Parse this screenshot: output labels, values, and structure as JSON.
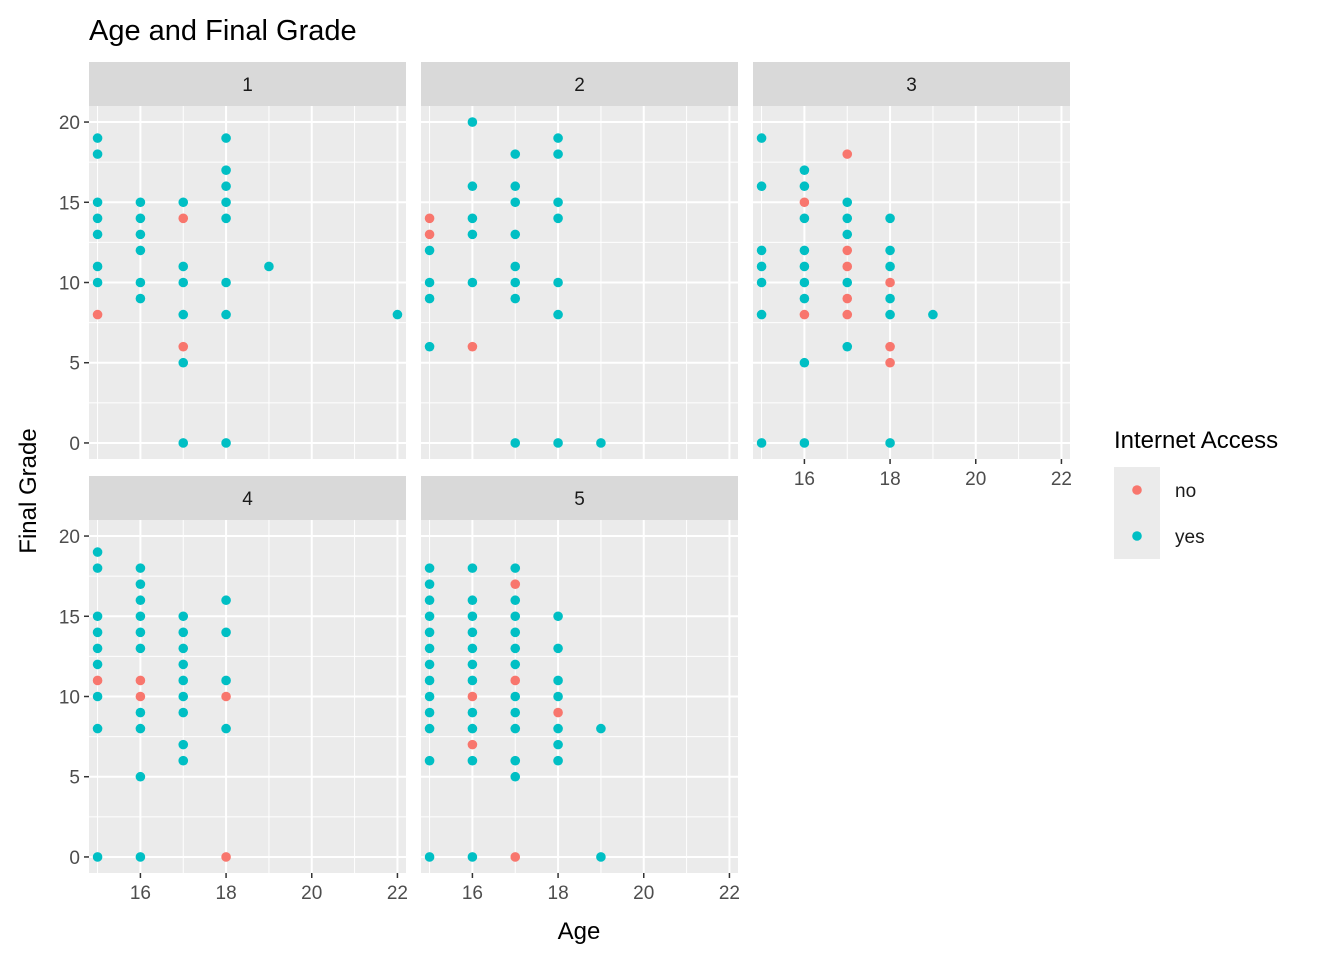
{
  "chart_data": {
    "type": "scatter",
    "title": "Age and Final Grade",
    "xlabel": "Age",
    "ylabel": "Final Grade",
    "xlim": [
      14.8,
      22.2
    ],
    "ylim": [
      -1,
      21
    ],
    "x_ticks": [
      16,
      18,
      20,
      22
    ],
    "y_ticks": [
      0,
      5,
      10,
      15,
      20
    ],
    "grid": true,
    "legend": {
      "title": "Internet Access",
      "position": "right",
      "entries": [
        {
          "label": "no",
          "color": "#F8766D"
        },
        {
          "label": "yes",
          "color": "#00BFC4"
        }
      ]
    },
    "facets": [
      {
        "label": "1",
        "points": [
          [
            15,
            19,
            "yes"
          ],
          [
            15,
            18,
            "yes"
          ],
          [
            15,
            15,
            "yes"
          ],
          [
            15,
            14,
            "yes"
          ],
          [
            15,
            13,
            "yes"
          ],
          [
            15,
            11,
            "yes"
          ],
          [
            15,
            10,
            "yes"
          ],
          [
            15,
            8,
            "no"
          ],
          [
            16,
            15,
            "yes"
          ],
          [
            16,
            14,
            "yes"
          ],
          [
            16,
            13,
            "yes"
          ],
          [
            16,
            12,
            "yes"
          ],
          [
            16,
            10,
            "yes"
          ],
          [
            16,
            9,
            "yes"
          ],
          [
            17,
            15,
            "yes"
          ],
          [
            17,
            14,
            "no"
          ],
          [
            17,
            11,
            "yes"
          ],
          [
            17,
            10,
            "yes"
          ],
          [
            17,
            8,
            "yes"
          ],
          [
            17,
            6,
            "no"
          ],
          [
            17,
            5,
            "yes"
          ],
          [
            17,
            0,
            "yes"
          ],
          [
            18,
            19,
            "yes"
          ],
          [
            18,
            17,
            "yes"
          ],
          [
            18,
            16,
            "yes"
          ],
          [
            18,
            15,
            "yes"
          ],
          [
            18,
            14,
            "yes"
          ],
          [
            18,
            10,
            "yes"
          ],
          [
            18,
            8,
            "yes"
          ],
          [
            18,
            0,
            "yes"
          ],
          [
            19,
            11,
            "yes"
          ],
          [
            22,
            8,
            "yes"
          ]
        ]
      },
      {
        "label": "2",
        "points": [
          [
            15,
            14,
            "no"
          ],
          [
            15,
            13,
            "no"
          ],
          [
            15,
            12,
            "yes"
          ],
          [
            15,
            10,
            "yes"
          ],
          [
            15,
            9,
            "yes"
          ],
          [
            15,
            6,
            "yes"
          ],
          [
            16,
            20,
            "yes"
          ],
          [
            16,
            16,
            "yes"
          ],
          [
            16,
            14,
            "yes"
          ],
          [
            16,
            13,
            "yes"
          ],
          [
            16,
            10,
            "yes"
          ],
          [
            16,
            6,
            "no"
          ],
          [
            17,
            18,
            "yes"
          ],
          [
            17,
            16,
            "yes"
          ],
          [
            17,
            15,
            "yes"
          ],
          [
            17,
            13,
            "yes"
          ],
          [
            17,
            11,
            "yes"
          ],
          [
            17,
            10,
            "yes"
          ],
          [
            17,
            9,
            "yes"
          ],
          [
            17,
            0,
            "yes"
          ],
          [
            18,
            19,
            "yes"
          ],
          [
            18,
            18,
            "yes"
          ],
          [
            18,
            15,
            "yes"
          ],
          [
            18,
            14,
            "yes"
          ],
          [
            18,
            10,
            "yes"
          ],
          [
            18,
            8,
            "yes"
          ],
          [
            18,
            0,
            "yes"
          ],
          [
            19,
            0,
            "yes"
          ]
        ]
      },
      {
        "label": "3",
        "points": [
          [
            15,
            19,
            "yes"
          ],
          [
            15,
            16,
            "yes"
          ],
          [
            15,
            12,
            "yes"
          ],
          [
            15,
            11,
            "yes"
          ],
          [
            15,
            10,
            "yes"
          ],
          [
            15,
            8,
            "yes"
          ],
          [
            15,
            0,
            "yes"
          ],
          [
            16,
            17,
            "yes"
          ],
          [
            16,
            16,
            "yes"
          ],
          [
            16,
            15,
            "no"
          ],
          [
            16,
            14,
            "yes"
          ],
          [
            16,
            12,
            "yes"
          ],
          [
            16,
            11,
            "yes"
          ],
          [
            16,
            10,
            "yes"
          ],
          [
            16,
            9,
            "yes"
          ],
          [
            16,
            8,
            "no"
          ],
          [
            16,
            5,
            "yes"
          ],
          [
            16,
            0,
            "yes"
          ],
          [
            17,
            18,
            "no"
          ],
          [
            17,
            15,
            "yes"
          ],
          [
            17,
            14,
            "yes"
          ],
          [
            17,
            13,
            "yes"
          ],
          [
            17,
            12,
            "no"
          ],
          [
            17,
            11,
            "no"
          ],
          [
            17,
            10,
            "yes"
          ],
          [
            17,
            9,
            "no"
          ],
          [
            17,
            8,
            "no"
          ],
          [
            17,
            6,
            "yes"
          ],
          [
            18,
            14,
            "yes"
          ],
          [
            18,
            12,
            "yes"
          ],
          [
            18,
            11,
            "yes"
          ],
          [
            18,
            10,
            "no"
          ],
          [
            18,
            9,
            "yes"
          ],
          [
            18,
            8,
            "yes"
          ],
          [
            18,
            6,
            "no"
          ],
          [
            18,
            5,
            "no"
          ],
          [
            18,
            0,
            "yes"
          ],
          [
            19,
            8,
            "yes"
          ]
        ]
      },
      {
        "label": "4",
        "points": [
          [
            15,
            19,
            "yes"
          ],
          [
            15,
            18,
            "yes"
          ],
          [
            15,
            15,
            "yes"
          ],
          [
            15,
            14,
            "yes"
          ],
          [
            15,
            13,
            "yes"
          ],
          [
            15,
            12,
            "yes"
          ],
          [
            15,
            11,
            "no"
          ],
          [
            15,
            10,
            "yes"
          ],
          [
            15,
            8,
            "yes"
          ],
          [
            15,
            0,
            "yes"
          ],
          [
            16,
            18,
            "yes"
          ],
          [
            16,
            17,
            "yes"
          ],
          [
            16,
            16,
            "yes"
          ],
          [
            16,
            15,
            "yes"
          ],
          [
            16,
            14,
            "yes"
          ],
          [
            16,
            13,
            "yes"
          ],
          [
            16,
            11,
            "no"
          ],
          [
            16,
            10,
            "no"
          ],
          [
            16,
            9,
            "yes"
          ],
          [
            16,
            8,
            "yes"
          ],
          [
            16,
            5,
            "yes"
          ],
          [
            16,
            0,
            "yes"
          ],
          [
            17,
            15,
            "yes"
          ],
          [
            17,
            14,
            "yes"
          ],
          [
            17,
            13,
            "yes"
          ],
          [
            17,
            12,
            "yes"
          ],
          [
            17,
            11,
            "yes"
          ],
          [
            17,
            10,
            "yes"
          ],
          [
            17,
            9,
            "yes"
          ],
          [
            17,
            7,
            "yes"
          ],
          [
            17,
            6,
            "yes"
          ],
          [
            18,
            16,
            "yes"
          ],
          [
            18,
            14,
            "yes"
          ],
          [
            18,
            11,
            "yes"
          ],
          [
            18,
            10,
            "no"
          ],
          [
            18,
            8,
            "yes"
          ],
          [
            18,
            0,
            "no"
          ]
        ]
      },
      {
        "label": "5",
        "points": [
          [
            15,
            18,
            "yes"
          ],
          [
            15,
            17,
            "yes"
          ],
          [
            15,
            16,
            "yes"
          ],
          [
            15,
            15,
            "yes"
          ],
          [
            15,
            14,
            "yes"
          ],
          [
            15,
            13,
            "yes"
          ],
          [
            15,
            12,
            "yes"
          ],
          [
            15,
            11,
            "yes"
          ],
          [
            15,
            10,
            "yes"
          ],
          [
            15,
            9,
            "yes"
          ],
          [
            15,
            8,
            "yes"
          ],
          [
            15,
            6,
            "yes"
          ],
          [
            15,
            0,
            "yes"
          ],
          [
            16,
            18,
            "yes"
          ],
          [
            16,
            16,
            "yes"
          ],
          [
            16,
            15,
            "yes"
          ],
          [
            16,
            14,
            "yes"
          ],
          [
            16,
            13,
            "yes"
          ],
          [
            16,
            12,
            "yes"
          ],
          [
            16,
            11,
            "yes"
          ],
          [
            16,
            10,
            "no"
          ],
          [
            16,
            9,
            "yes"
          ],
          [
            16,
            8,
            "yes"
          ],
          [
            16,
            7,
            "no"
          ],
          [
            16,
            6,
            "yes"
          ],
          [
            16,
            0,
            "yes"
          ],
          [
            17,
            18,
            "yes"
          ],
          [
            17,
            17,
            "no"
          ],
          [
            17,
            16,
            "yes"
          ],
          [
            17,
            15,
            "yes"
          ],
          [
            17,
            14,
            "yes"
          ],
          [
            17,
            13,
            "yes"
          ],
          [
            17,
            12,
            "yes"
          ],
          [
            17,
            11,
            "no"
          ],
          [
            17,
            10,
            "yes"
          ],
          [
            17,
            9,
            "yes"
          ],
          [
            17,
            8,
            "yes"
          ],
          [
            17,
            6,
            "yes"
          ],
          [
            17,
            5,
            "yes"
          ],
          [
            17,
            0,
            "no"
          ],
          [
            18,
            15,
            "yes"
          ],
          [
            18,
            13,
            "yes"
          ],
          [
            18,
            11,
            "yes"
          ],
          [
            18,
            10,
            "yes"
          ],
          [
            18,
            9,
            "no"
          ],
          [
            18,
            8,
            "yes"
          ],
          [
            18,
            7,
            "yes"
          ],
          [
            18,
            6,
            "yes"
          ],
          [
            19,
            8,
            "yes"
          ],
          [
            19,
            0,
            "yes"
          ]
        ]
      }
    ]
  }
}
